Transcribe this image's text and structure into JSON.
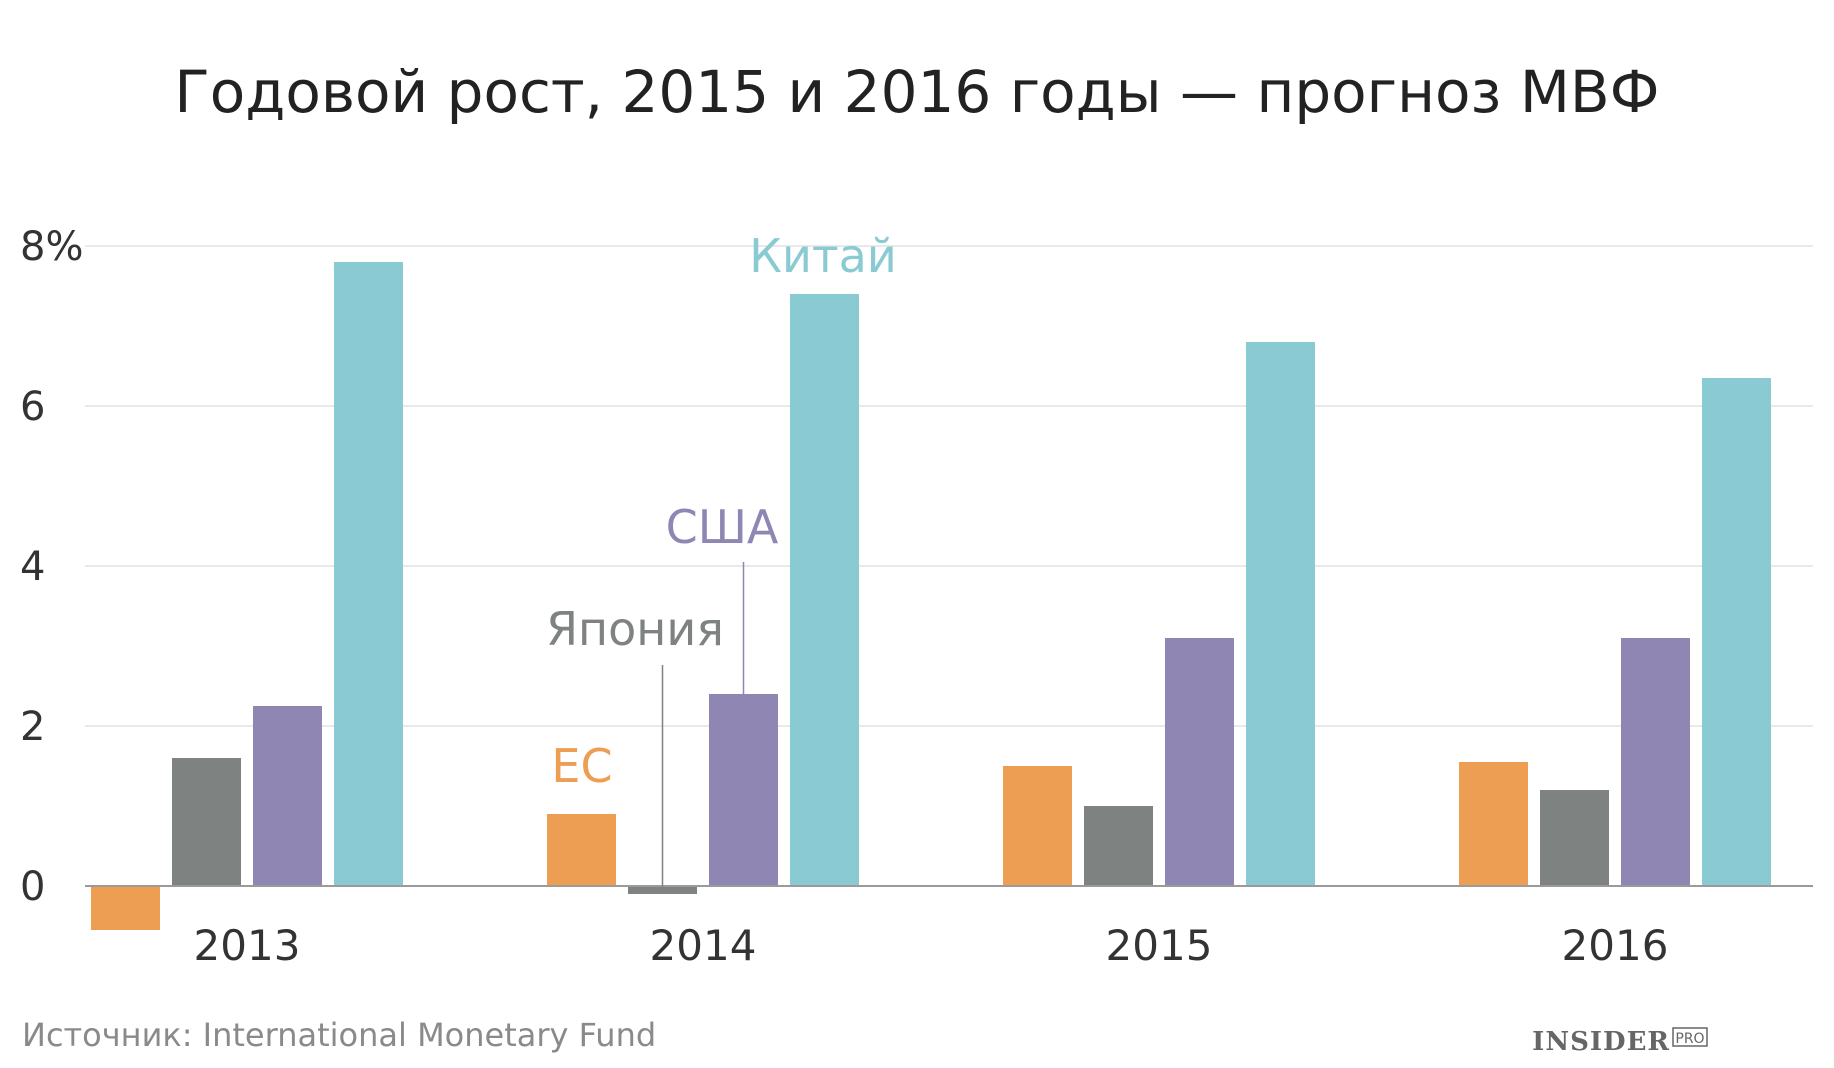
{
  "chart_data": {
    "type": "bar",
    "title": "Годовой рост, 2015 и 2016 годы — прогноз МВФ",
    "categories": [
      "2013",
      "2014",
      "2015",
      "2016"
    ],
    "y_ticks": [
      "0",
      "2",
      "4",
      "6",
      "8%"
    ],
    "ylim": [
      -0.6,
      8
    ],
    "grid": true,
    "series": [
      {
        "name": "ЕС",
        "color": "#ED9E52",
        "values": [
          -0.55,
          0.9,
          1.5,
          1.55
        ]
      },
      {
        "name": "Япония",
        "color": "#7E8281",
        "values": [
          1.6,
          -0.1,
          1.0,
          1.2
        ]
      },
      {
        "name": "США",
        "color": "#8F86B3",
        "values": [
          2.25,
          2.4,
          3.1,
          3.1
        ]
      },
      {
        "name": "Китай",
        "color": "#8ACBD3",
        "values": [
          7.8,
          7.4,
          6.8,
          6.35
        ]
      }
    ]
  },
  "source": "Источник: International Monetary Fund",
  "logo": {
    "main": "INSIDER",
    "sup": "PRO"
  }
}
